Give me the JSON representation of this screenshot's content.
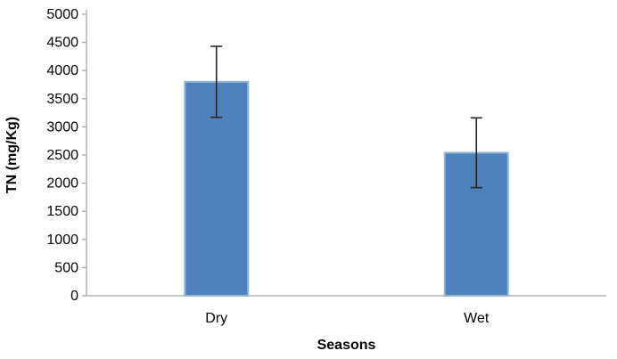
{
  "chart_data": {
    "type": "bar",
    "title": "",
    "categories": [
      "Dry",
      "Wet"
    ],
    "values": [
      3800,
      2540
    ],
    "error_low": [
      3170,
      1920
    ],
    "error_high": [
      4430,
      3160
    ],
    "xlabel": "Seasons",
    "ylabel": "TN (mg/Kg)",
    "ylim": [
      0,
      5000
    ],
    "ytick_step": 500,
    "ytick_labels": [
      "0",
      "500",
      "1000",
      "1500",
      "2000",
      "2500",
      "3000",
      "3500",
      "4000",
      "4500",
      "5000"
    ],
    "grid": "off",
    "legend": "none",
    "colors": {
      "bar_fill": "#4F81BD",
      "bar_border": "#95B3D7",
      "error_bar": "#262626",
      "axis_line": "#A6A6A6",
      "text": "#000000",
      "background": "#FFFFFF"
    }
  }
}
